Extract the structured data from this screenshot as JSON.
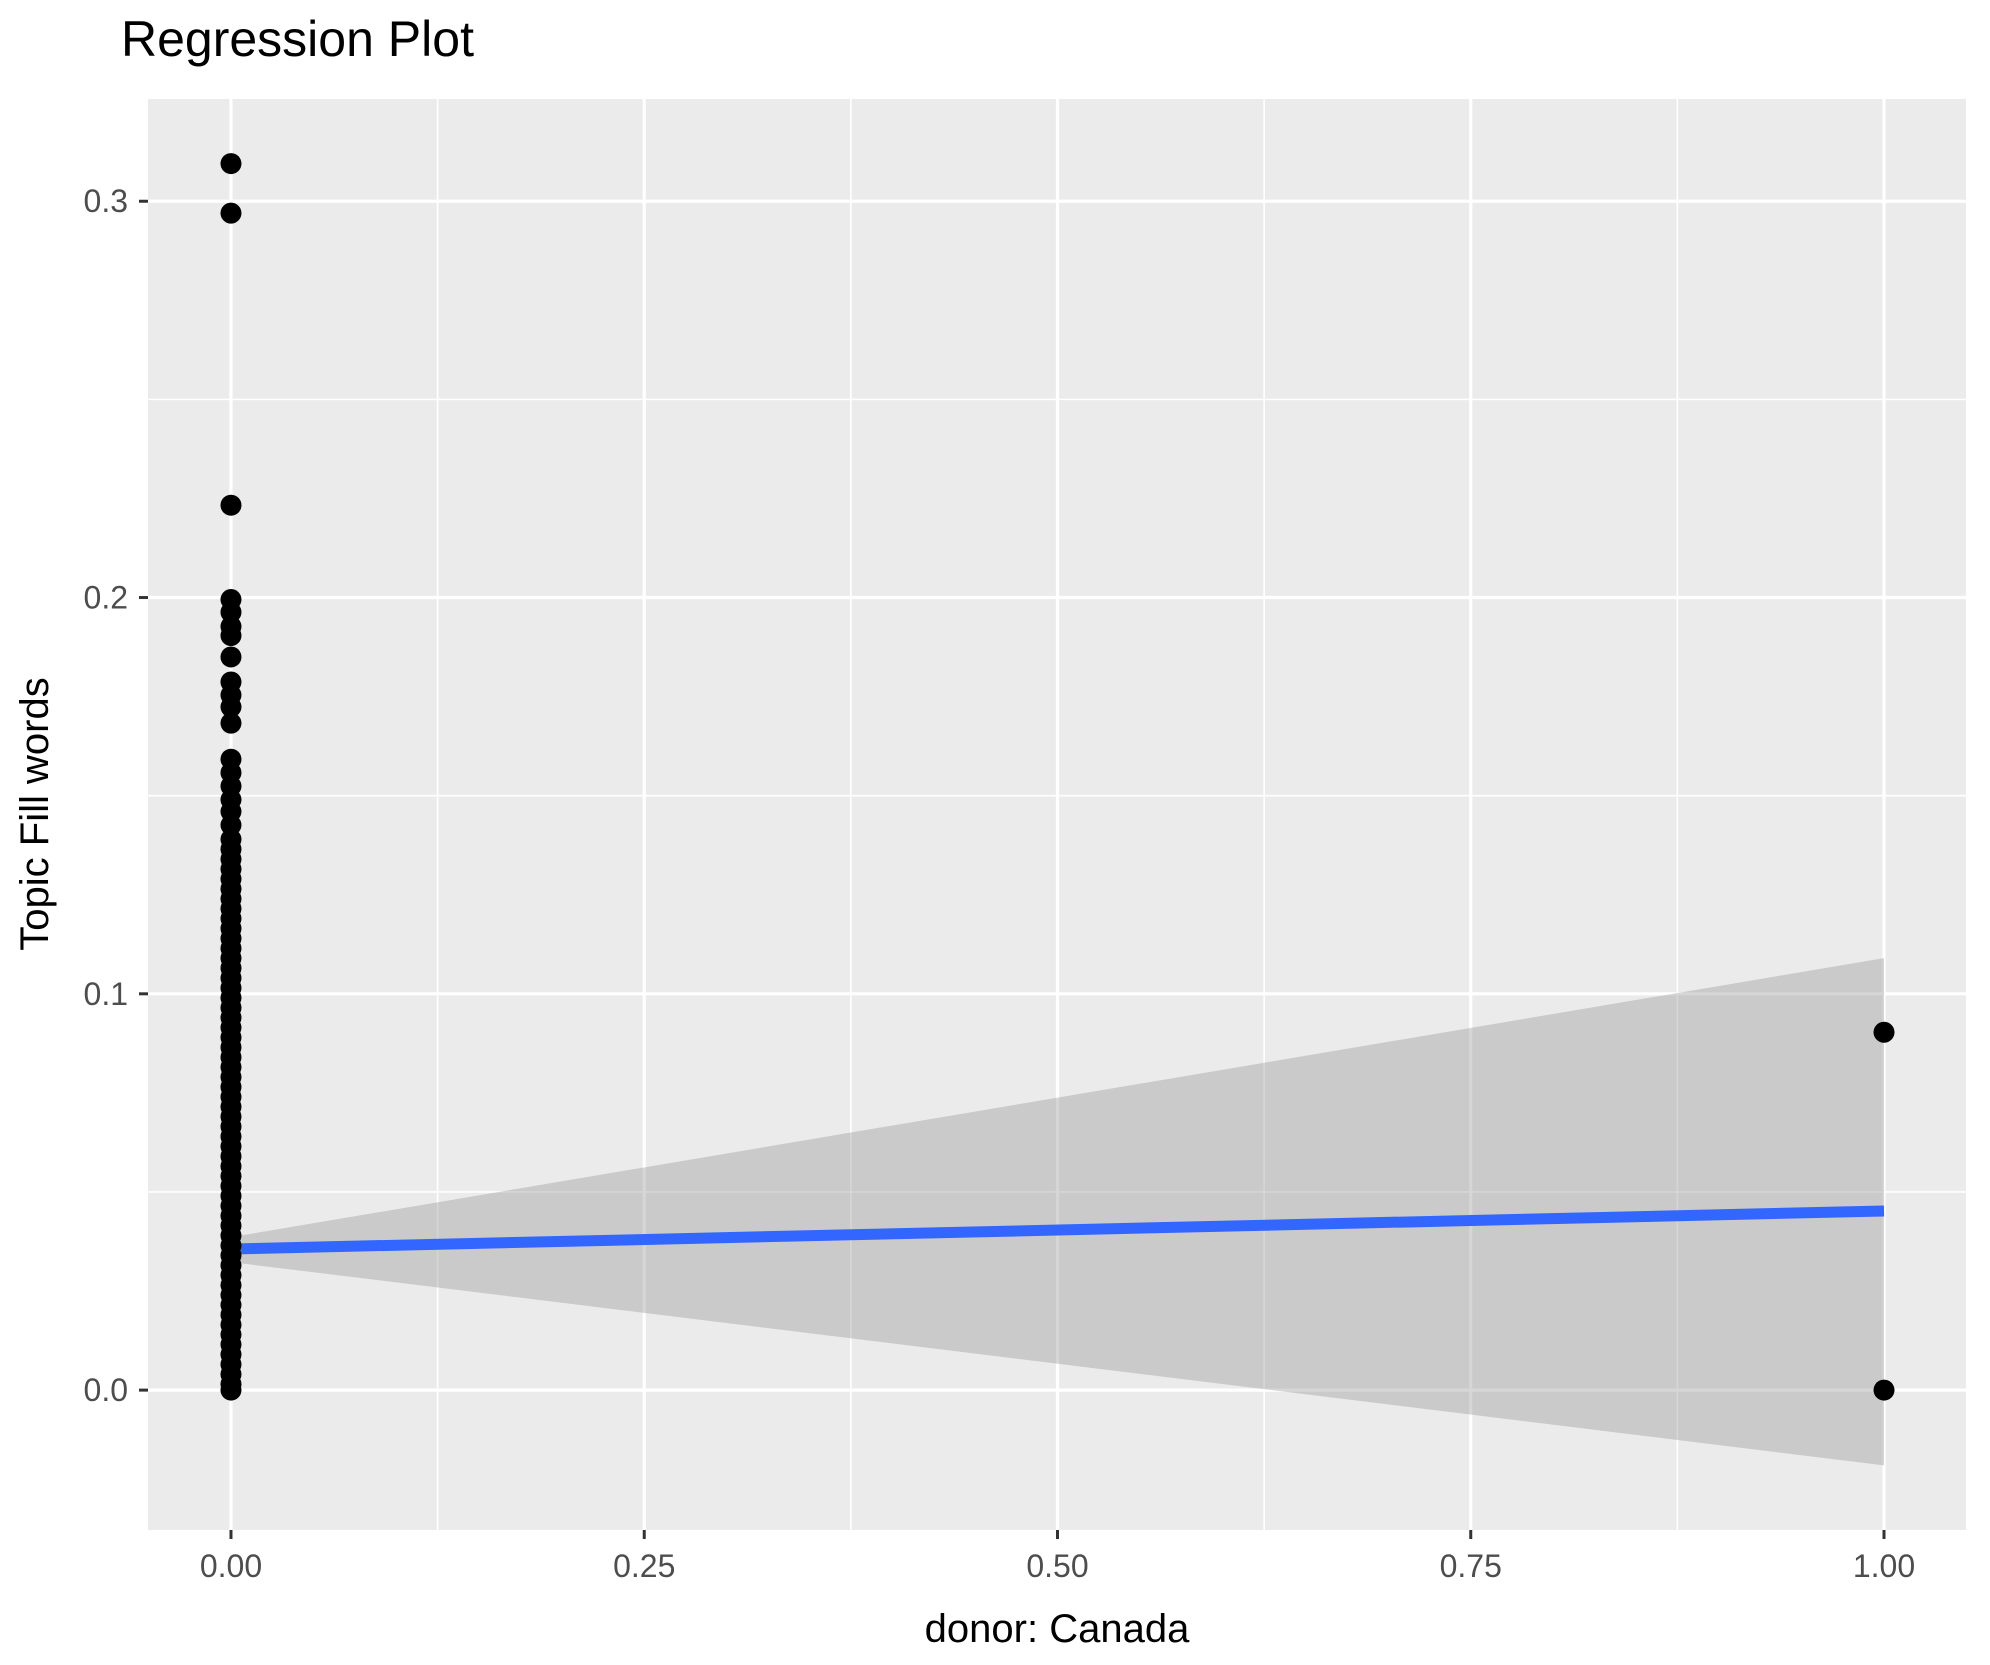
{
  "figure": {
    "title": "Regression Plot",
    "xlabel": "donor: Canada",
    "ylabel": "Topic Fill words"
  },
  "chart_data": {
    "type": "scatter",
    "title": "Regression Plot",
    "xlabel": "donor: Canada",
    "ylabel": "Topic Fill words",
    "xlim": [
      -0.0502,
      1.0496
    ],
    "ylim": [
      -0.0353,
      0.3258
    ],
    "x_ticks": {
      "values": [
        0,
        0.25,
        0.5,
        0.75,
        1.0
      ],
      "labels": [
        "0.00",
        "0.25",
        "0.50",
        "0.75",
        "1.00"
      ]
    },
    "y_ticks": {
      "values": [
        0,
        0.1,
        0.2,
        0.3
      ],
      "labels": [
        "0.0",
        "0.1",
        "0.2",
        "0.3"
      ]
    },
    "x_minor": [
      0.125,
      0.375,
      0.625,
      0.875
    ],
    "y_minor": [
      0.05,
      0.15,
      0.25
    ],
    "grid": true,
    "legend": "none",
    "colors": {
      "panel_bg": "#EBEBEB",
      "grid": "#FFFFFF",
      "points": "#000000",
      "regression_line": "#3366FF",
      "confidence_band": "#999999",
      "confidence_band_opacity": 0.4,
      "tick_label": "#4D4D4D",
      "tick_mark": "#333333",
      "text": "#000000"
    },
    "series": [
      {
        "name": "observations",
        "type": "points",
        "x0_values": [
          0.3095,
          0.297,
          0.2233,
          0.1995,
          0.1963,
          0.1927,
          0.1904,
          0.185,
          0.1787,
          0.1754,
          0.1724,
          0.1683,
          0.1592,
          0.1558,
          0.1524,
          0.149,
          0.146,
          0.1426,
          0.139,
          0.1365,
          0.134,
          0.1315,
          0.129,
          0.1265,
          0.124,
          0.1215,
          0.119,
          0.1165,
          0.114,
          0.1115,
          0.109,
          0.1065,
          0.104,
          0.1015,
          0.099,
          0.0965,
          0.094,
          0.0915,
          0.089,
          0.0865,
          0.084,
          0.0815,
          0.079,
          0.0765,
          0.074,
          0.0715,
          0.069,
          0.0665,
          0.064,
          0.0615,
          0.059,
          0.0565,
          0.054,
          0.0515,
          0.049,
          0.0465,
          0.044,
          0.0415,
          0.039,
          0.0365,
          0.034,
          0.0315,
          0.029,
          0.0265,
          0.024,
          0.0215,
          0.019,
          0.0165,
          0.014,
          0.0115,
          0.009,
          0.0065,
          0.004,
          0.0015,
          0.0
        ],
        "x1_values": [
          0.0903,
          0.0
        ]
      },
      {
        "name": "regression-fit",
        "type": "line",
        "points": [
          [
            0,
            0.0356
          ],
          [
            1,
            0.0452
          ]
        ]
      },
      {
        "name": "confidence-band",
        "type": "band",
        "upper": [
          [
            0,
            0.0386
          ],
          [
            1,
            0.109
          ]
        ],
        "lower": [
          [
            0,
            0.0323
          ],
          [
            1,
            -0.019
          ]
        ]
      }
    ]
  }
}
